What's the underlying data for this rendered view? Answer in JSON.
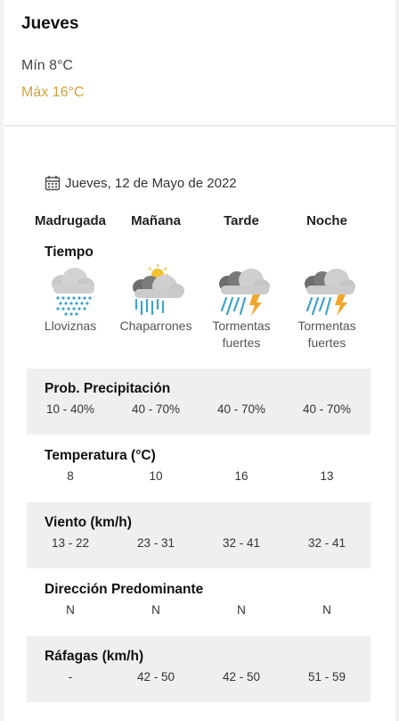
{
  "header": {
    "day": "Jueves",
    "min": "Mín 8°C",
    "max": "Máx 16°C",
    "max_color": "#d4a03a"
  },
  "detail": {
    "date": "Jueves, 12 de Mayo de 2022",
    "periods": [
      "Madrugada",
      "Mañana",
      "Tarde",
      "Noche"
    ],
    "weather_title": "Tiempo",
    "weather": [
      {
        "icon": "drizzle-cloud-icon",
        "desc": "Lloviznas"
      },
      {
        "icon": "showers-sun-cloud-icon",
        "desc": "Chaparrones"
      },
      {
        "icon": "thunderstorm-icon",
        "desc": "Tormentas fuertes"
      },
      {
        "icon": "thunderstorm-icon",
        "desc": "Tormentas fuertes"
      }
    ],
    "rows": [
      {
        "title": "Prob. Precipitación",
        "values": [
          "10 - 40%",
          "40 - 70%",
          "40 - 70%",
          "40 - 70%"
        ]
      },
      {
        "title": "Temperatura (°C)",
        "values": [
          "8",
          "10",
          "16",
          "13"
        ]
      },
      {
        "title": "Viento (km/h)",
        "values": [
          "13 - 22",
          "23 - 31",
          "32 - 41",
          "32 - 41"
        ]
      },
      {
        "title": "Dirección Predominante",
        "values": [
          "N",
          "N",
          "N",
          "N"
        ]
      },
      {
        "title": "Ráfagas (km/h)",
        "values": [
          "-",
          "42 - 50",
          "42 - 50",
          "51 - 59"
        ]
      }
    ]
  }
}
